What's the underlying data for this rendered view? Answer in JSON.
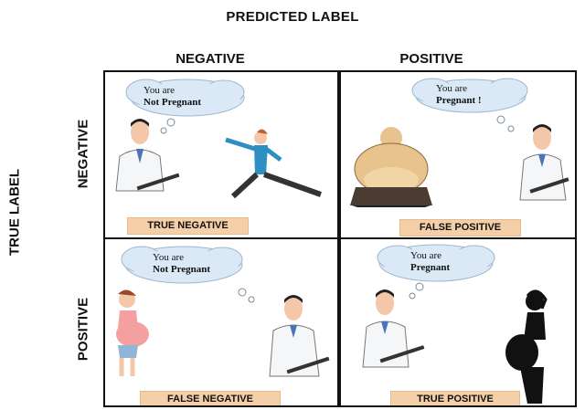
{
  "axis": {
    "predicted": "PREDICTED LABEL",
    "true": "TRUE LABEL"
  },
  "columns": [
    "NEGATIVE",
    "POSITIVE"
  ],
  "rows": [
    "NEGATIVE",
    "POSITIVE"
  ],
  "cells": [
    {
      "tag": "TRUE NEGATIVE",
      "line1": "You are",
      "line2": "Not Pregnant"
    },
    {
      "tag": "FALSE POSITIVE",
      "line1": "You are",
      "line2": "Pregnant !"
    },
    {
      "tag": "FALSE NEGATIVE",
      "line1": "You are",
      "line2": "Not Pregnant"
    },
    {
      "tag": "TRUE POSITIVE",
      "line1": "You are",
      "line2": "Pregnant"
    }
  ],
  "colors": {
    "bubble": "#dbe9f6",
    "tag": "#f5cfa8",
    "shirt": "#2f8fc2",
    "skin": "#f3c7a8"
  }
}
